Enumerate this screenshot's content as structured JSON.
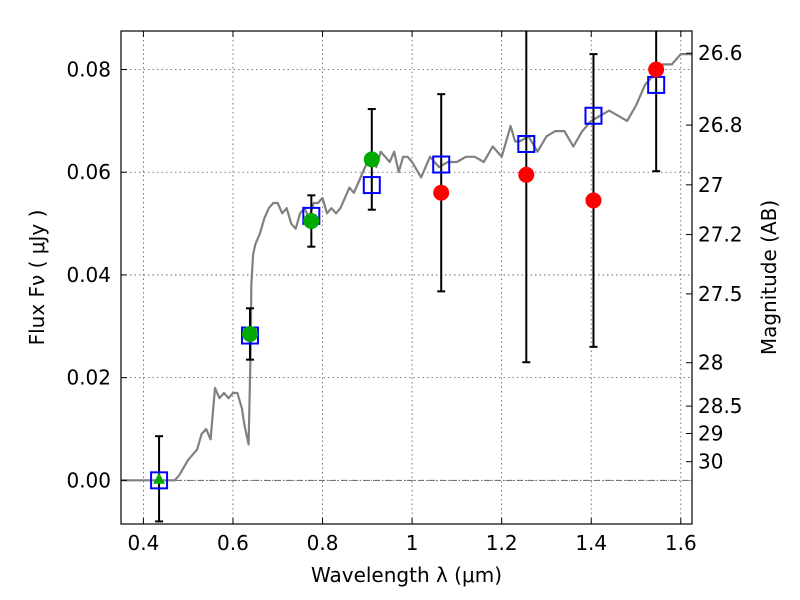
{
  "chart_data": {
    "type": "scatter",
    "title": "",
    "xlabel": "Wavelength  λ (μm)",
    "ylabel": "Flux  Fν  ( μJy )",
    "y2label": "Magnitude (AB)",
    "xlim": [
      0.35,
      1.625
    ],
    "ylim": [
      -0.0085,
      0.0875
    ],
    "grid": true,
    "xticks": [
      0.4,
      0.6,
      0.8,
      1.0,
      1.2,
      1.4,
      1.6
    ],
    "xtick_labels": [
      "0.4",
      "0.6",
      "0.8",
      "1",
      "1.2",
      "1.4",
      "1.6"
    ],
    "yticks": [
      0.0,
      0.02,
      0.04,
      0.06,
      0.08
    ],
    "ytick_labels": [
      "0.00",
      "0.02",
      "0.04",
      "0.06",
      "0.08"
    ],
    "mag_ticks": [
      "26.6",
      "26.8",
      "27",
      "27.2",
      "27.5",
      "28",
      "28.5",
      "29",
      "30"
    ],
    "colors": {
      "model": "#808080",
      "detection": "#00aa00",
      "nondetection": "#ff0000",
      "model_band": "#0000ff",
      "errorbar": "#000000"
    },
    "model_spectrum": {
      "x": [
        0.35,
        0.4,
        0.47,
        0.48,
        0.5,
        0.52,
        0.53,
        0.54,
        0.55,
        0.56,
        0.57,
        0.58,
        0.59,
        0.6,
        0.61,
        0.62,
        0.625,
        0.63,
        0.635,
        0.64,
        0.641,
        0.645,
        0.65,
        0.66,
        0.67,
        0.68,
        0.69,
        0.7,
        0.71,
        0.72,
        0.73,
        0.74,
        0.75,
        0.76,
        0.77,
        0.78,
        0.79,
        0.8,
        0.81,
        0.82,
        0.83,
        0.84,
        0.85,
        0.86,
        0.87,
        0.88,
        0.89,
        0.9,
        0.91,
        0.92,
        0.93,
        0.94,
        0.95,
        0.96,
        0.97,
        0.98,
        0.99,
        1.0,
        1.02,
        1.04,
        1.06,
        1.08,
        1.1,
        1.12,
        1.14,
        1.16,
        1.18,
        1.2,
        1.22,
        1.23,
        1.24,
        1.26,
        1.28,
        1.3,
        1.32,
        1.34,
        1.36,
        1.38,
        1.4,
        1.42,
        1.44,
        1.46,
        1.48,
        1.5,
        1.52,
        1.54,
        1.56,
        1.58,
        1.6,
        1.625
      ],
      "y": [
        0.0,
        0.0,
        0.0,
        0.001,
        0.004,
        0.006,
        0.009,
        0.01,
        0.008,
        0.018,
        0.016,
        0.017,
        0.016,
        0.017,
        0.017,
        0.014,
        0.011,
        0.009,
        0.007,
        0.028,
        0.038,
        0.044,
        0.046,
        0.048,
        0.051,
        0.053,
        0.054,
        0.054,
        0.052,
        0.053,
        0.05,
        0.049,
        0.052,
        0.053,
        0.051,
        0.054,
        0.054,
        0.055,
        0.052,
        0.053,
        0.052,
        0.053,
        0.055,
        0.057,
        0.056,
        0.058,
        0.06,
        0.062,
        0.063,
        0.061,
        0.064,
        0.063,
        0.062,
        0.064,
        0.06,
        0.063,
        0.063,
        0.062,
        0.059,
        0.063,
        0.061,
        0.062,
        0.062,
        0.063,
        0.063,
        0.062,
        0.065,
        0.063,
        0.069,
        0.066,
        0.066,
        0.067,
        0.064,
        0.067,
        0.068,
        0.068,
        0.065,
        0.068,
        0.07,
        0.071,
        0.072,
        0.071,
        0.07,
        0.073,
        0.077,
        0.079,
        0.081,
        0.081,
        0.083,
        0.083
      ]
    },
    "series": [
      {
        "type": "errorbar",
        "x": [
          0.435,
          0.638,
          0.775,
          0.91,
          1.065,
          1.255,
          1.405,
          1.545
        ],
        "y": [
          0.0003,
          0.0285,
          0.0505,
          0.0625,
          0.056,
          0.0595,
          0.0545,
          0.08
        ],
        "yerr": [
          0.0083,
          0.005,
          0.005,
          0.0098,
          0.0192,
          0.0365,
          0.0285,
          0.0198
        ]
      },
      {
        "type": "detection",
        "marker": "circle",
        "x": [
          0.638,
          0.775,
          0.91
        ],
        "y": [
          0.0285,
          0.0505,
          0.0625
        ]
      },
      {
        "type": "detection",
        "marker": "triangle",
        "x": [
          0.435
        ],
        "y": [
          0.0003
        ]
      },
      {
        "type": "nondetection",
        "marker": "circle",
        "x": [
          1.065,
          1.255,
          1.405,
          1.545
        ],
        "y": [
          0.056,
          0.0595,
          0.0545,
          0.08
        ]
      },
      {
        "type": "model_band",
        "marker": "square",
        "x": [
          0.435,
          0.638,
          0.775,
          0.91,
          1.065,
          1.255,
          1.405,
          1.545
        ],
        "y": [
          0.0,
          0.0282,
          0.0515,
          0.0575,
          0.0615,
          0.0655,
          0.071,
          0.077
        ]
      }
    ]
  }
}
